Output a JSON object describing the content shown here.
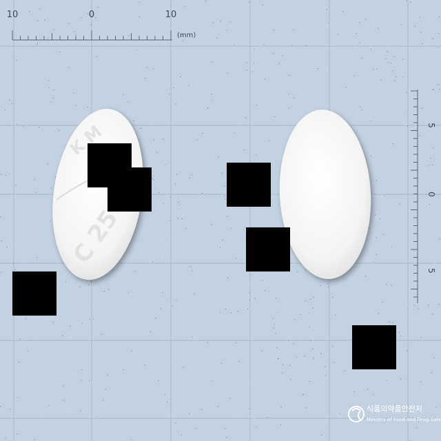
{
  "ruler_top": {
    "labels": [
      "10",
      "0",
      "10"
    ],
    "unit": "(mm)"
  },
  "ruler_right": {
    "labels": [
      "5",
      "0",
      "5"
    ]
  },
  "pill_front": {
    "imprint_top": "K M",
    "imprint_bottom": "C 25"
  },
  "logo": {
    "korean": "식품의약품안전처",
    "english": "Ministry of Food and Drug Safety"
  },
  "colors": {
    "background": "#c3d1e0",
    "grid": "#a9b9cb",
    "pill": "#f7f7f7",
    "redaction": "#000000"
  }
}
